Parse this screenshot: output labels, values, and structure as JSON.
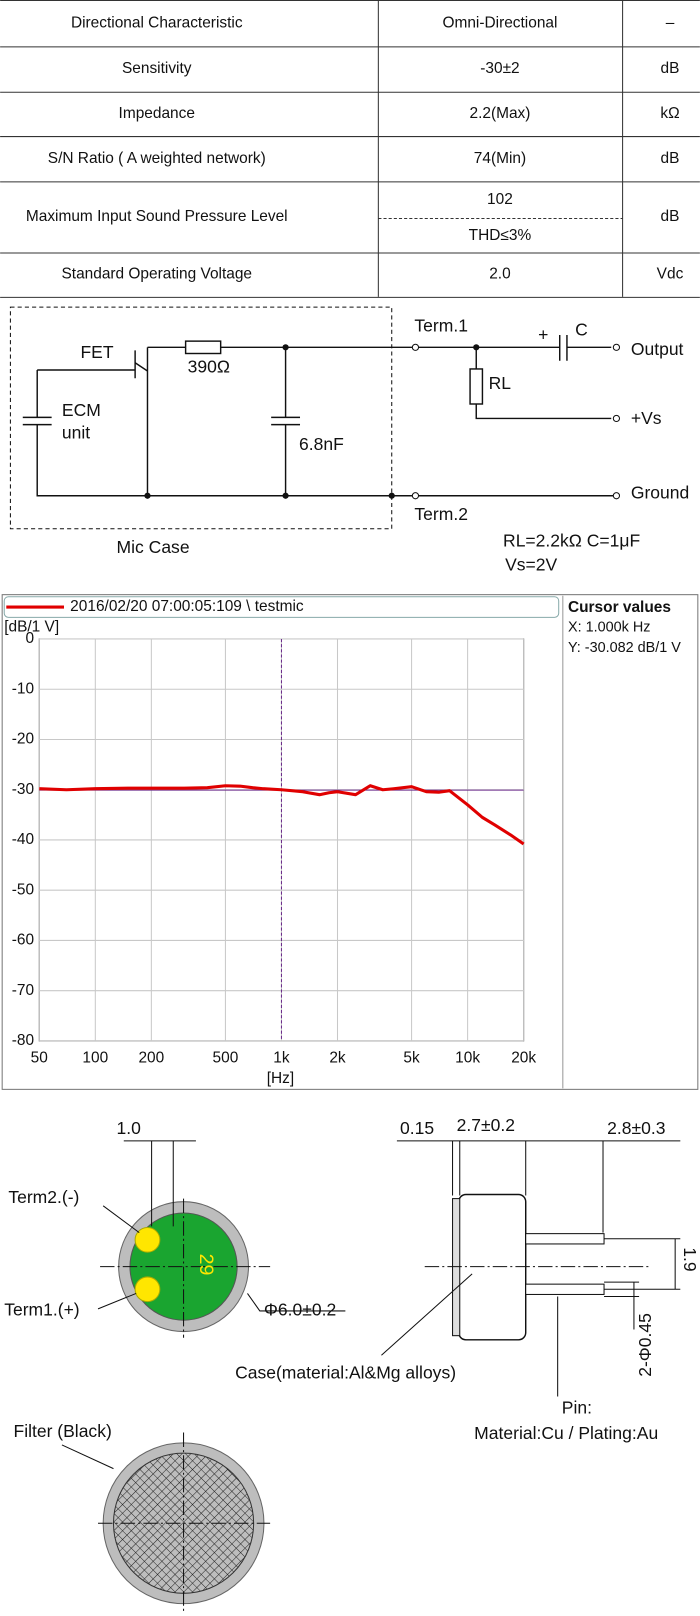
{
  "table": {
    "rows": [
      {
        "parameter": "Directional Characteristic",
        "value": "Omni-Directional",
        "unit": "–"
      },
      {
        "parameter": "Sensitivity",
        "value": "-30±2",
        "unit": "dB"
      },
      {
        "parameter": "Impedance",
        "value": "2.2(Max)",
        "unit": "kΩ"
      },
      {
        "parameter": "S/N Ratio ( A weighted network)",
        "value": "74(Min)",
        "unit": "dB"
      },
      {
        "parameter": "Maximum Input Sound Pressure Level",
        "value": "102",
        "note": "THD≤3%",
        "unit": "dB"
      },
      {
        "parameter": "Standard Operating Voltage",
        "value": "2.0",
        "unit": "Vdc"
      }
    ]
  },
  "circuit": {
    "labels": [
      "FET",
      "390Ω",
      "ECM",
      "unit",
      "6.8nF",
      "Mic Case",
      "Term.1",
      "Term.2",
      "+",
      "C",
      "RL",
      "Output",
      "+Vs",
      "Ground",
      "RL=2.2kΩ  C=1μF",
      "Vs=2V"
    ]
  },
  "chart_data": {
    "type": "line",
    "x_label": "[Hz]",
    "y_label": "[dB/1 V]",
    "xscale": "log",
    "grid": true,
    "xlim": [
      50,
      20000
    ],
    "ylim": [
      -80,
      0
    ],
    "xticks": [
      50,
      100,
      200,
      500,
      {
        "value": 1000,
        "label": "1k"
      },
      {
        "value": 2000,
        "label": "2k"
      },
      {
        "value": 5000,
        "label": "5k"
      },
      {
        "value": 10000,
        "label": "10k"
      },
      {
        "value": 20000,
        "label": "20k"
      }
    ],
    "yticks": [
      0,
      -10,
      -20,
      -30,
      -40,
      -50,
      -60,
      -70,
      -80
    ],
    "x": [
      50,
      70,
      100,
      150,
      200,
      300,
      400,
      500,
      600,
      700,
      800,
      1000,
      1300,
      1600,
      1800,
      2000,
      2500,
      3000,
      3500,
      4000,
      5000,
      6000,
      7000,
      8000,
      10000,
      12000,
      14000,
      17000,
      20000
    ],
    "series": [
      {
        "name": "2016/02/20 07:00:05:109 \\ testmic",
        "color": "#e00000",
        "values": [
          -29.8,
          -30,
          -29.8,
          -29.7,
          -29.7,
          -29.7,
          -29.6,
          -29.2,
          -29.3,
          -29.6,
          -29.8,
          -30.0,
          -30.4,
          -31,
          -30.6,
          -30.4,
          -31,
          -29.2,
          -30,
          -29.8,
          -29.4,
          -30.4,
          -30.5,
          -30.2,
          -33,
          -35.5,
          -37,
          -39,
          -40.8
        ]
      }
    ],
    "cursor": {
      "title": "Cursor values",
      "x": {
        "value": 1000,
        "label": "X: 1.000k Hz"
      },
      "y": {
        "value": -30.082,
        "label": "Y: -30.082 dB/1 V"
      }
    }
  },
  "drawing": {
    "labels": [
      "1.0",
      "Term2.(-)",
      "Term1.(+)",
      "29",
      "Φ6.0±0.2",
      "0.15",
      "2.7±0.2",
      "2.8±0.3",
      "1.9",
      "2-Φ0.45",
      "Case(material:Al&Mg alloys)",
      "Pin:",
      "Material:Cu / Plating:Au",
      "Filter (Black)"
    ]
  }
}
